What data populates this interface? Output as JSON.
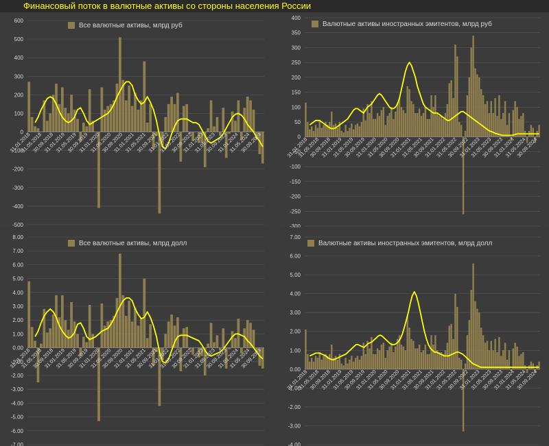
{
  "header": {
    "title": "Финансовый поток в валютные активы со стороны населения России"
  },
  "colors": {
    "bar": "#8f7f4f",
    "line": "#ffff00",
    "grid": "#595959",
    "text": "#d8d8d8",
    "zero": "#8a8a8a"
  },
  "chart_data": [
    {
      "type": "bar",
      "title": "Все валютные активы, млрд руб",
      "ylim": [
        -500,
        600
      ],
      "yticks": [
        -500,
        -400,
        -300,
        -200,
        -100,
        0,
        100,
        200,
        300,
        400,
        500,
        600
      ],
      "tick_decimals": 0,
      "xticks": [
        "31.01.2018",
        "31.05.2018",
        "30.09.2018",
        "31.01.2019",
        "31.05.2019",
        "30.09.2019",
        "31.01.2020",
        "31.05.2020",
        "30.09.2020",
        "31.01.2021",
        "31.05.2021",
        "30.09.2021",
        "31.01.2022",
        "31.05.2022",
        "30.09.2022",
        "31.01.2023",
        "31.05.2023",
        "30.09.2023",
        "31.01.2024",
        "31.05.2024",
        "30.09.2024"
      ],
      "series": [
        {
          "kind": "bar",
          "values": [
            270,
            80,
            30,
            20,
            0,
            170,
            60,
            100,
            200,
            260,
            150,
            240,
            130,
            100,
            200,
            120,
            70,
            -50,
            50,
            30,
            230,
            60,
            0,
            -410,
            240,
            120,
            140,
            150,
            170,
            260,
            510,
            280,
            170,
            250,
            140,
            210,
            120,
            170,
            380,
            50,
            150,
            -90,
            -20,
            -440,
            -80,
            80,
            150,
            190,
            150,
            210,
            -160,
            140,
            150,
            -10,
            -50,
            0,
            -60,
            -60,
            -190,
            20,
            170,
            30,
            80,
            -20,
            130,
            -140,
            -10,
            110,
            60,
            170,
            -40,
            130,
            190,
            170,
            120,
            -40,
            -120,
            -170
          ]
        },
        {
          "kind": "line",
          "values": [
            30,
            20,
            50,
            80,
            120,
            150,
            180,
            190,
            180,
            150,
            110,
            80,
            60,
            50,
            60,
            80,
            120,
            130,
            100,
            60,
            40,
            50,
            60,
            70,
            80,
            90,
            100,
            120,
            150,
            190,
            220,
            250,
            270,
            270,
            250,
            200,
            170,
            150,
            160,
            190,
            160,
            120,
            60,
            -20,
            -80,
            -90,
            -60,
            -10,
            30,
            60,
            70,
            70,
            70,
            60,
            50,
            50,
            40,
            10,
            -20,
            -50,
            -60,
            -50,
            -40,
            -30,
            -10,
            20,
            50,
            80,
            95,
            100,
            90,
            70,
            40,
            20,
            0,
            -30,
            -50,
            -80
          ]
        }
      ]
    },
    {
      "type": "bar",
      "title": "Валютные активы иностранных эмитентов, млрд руб",
      "ylim": [
        -300,
        400
      ],
      "yticks": [
        -300,
        -250,
        -200,
        -150,
        -100,
        -50,
        0,
        50,
        100,
        150,
        200,
        250,
        300,
        350,
        400
      ],
      "tick_decimals": 0,
      "xticks": [
        "31.01.2018",
        "31.05.2018",
        "30.09.2018",
        "31.01.2019",
        "31.05.2019",
        "30.09.2019",
        "31.01.2020",
        "31.05.2020",
        "30.09.2020",
        "31.01.2021",
        "31.05.2021",
        "30.09.2021",
        "31.01.2022",
        "31.05.2022",
        "30.09.2022",
        "31.01.2023",
        "31.05.2023",
        "30.09.2023",
        "31.01.2024",
        "31.05.2024",
        "30.09.2024"
      ],
      "series": [
        {
          "kind": "bar",
          "values": [
            115,
            50,
            25,
            35,
            20,
            40,
            30,
            55,
            30,
            40,
            50,
            40,
            50,
            85,
            40,
            45,
            30,
            50,
            20,
            15,
            40,
            20,
            30,
            45,
            25,
            40,
            45,
            35,
            50,
            95,
            55,
            110,
            80,
            120,
            60,
            60,
            80,
            70,
            90,
            100,
            40,
            70,
            80,
            100,
            60,
            85,
            115,
            130,
            100,
            90,
            80,
            170,
            160,
            120,
            110,
            80,
            80,
            95,
            70,
            80,
            100,
            60,
            60,
            140,
            100,
            140,
            80,
            70,
            70,
            60,
            80,
            110,
            180,
            190,
            130,
            310,
            270,
            50,
            40,
            -260,
            20,
            140,
            200,
            300,
            340,
            230,
            210,
            200,
            160,
            140,
            110,
            120,
            80,
            120,
            80,
            130,
            70,
            140,
            60,
            80,
            120,
            40,
            80,
            -10,
            90,
            120,
            100,
            60,
            70,
            80,
            20,
            -20,
            20,
            40,
            30,
            -20,
            20,
            40
          ]
        },
        {
          "kind": "line",
          "values": [
            30,
            35,
            40,
            45,
            50,
            55,
            55,
            55,
            50,
            45,
            40,
            35,
            30,
            28,
            28,
            30,
            35,
            40,
            45,
            50,
            55,
            60,
            70,
            80,
            90,
            95,
            95,
            90,
            85,
            80,
            90,
            100,
            105,
            110,
            120,
            130,
            140,
            145,
            140,
            130,
            120,
            110,
            100,
            95,
            95,
            100,
            110,
            130,
            160,
            190,
            220,
            240,
            250,
            240,
            220,
            200,
            170,
            150,
            130,
            110,
            100,
            95,
            90,
            85,
            80,
            80,
            80,
            75,
            70,
            65,
            60,
            55,
            55,
            60,
            65,
            70,
            75,
            80,
            85,
            85,
            80,
            75,
            70,
            65,
            60,
            55,
            50,
            45,
            40,
            35,
            30,
            25,
            20,
            18,
            15,
            12,
            10,
            8,
            6,
            5,
            5,
            5,
            5,
            5,
            6,
            8,
            10,
            10,
            10,
            10,
            10,
            10,
            10,
            10,
            10,
            10,
            10,
            10
          ]
        }
      ]
    },
    {
      "type": "bar",
      "title": "Все валютные активы, млрд долл",
      "ylim": [
        -7,
        8
      ],
      "yticks": [
        -7,
        -6,
        -5,
        -4,
        -3,
        -2,
        -1,
        0,
        1,
        2,
        3,
        4,
        5,
        6,
        7,
        8
      ],
      "tick_decimals": 2,
      "xticks": [
        "31.01.2018",
        "31.05.2018",
        "30.09.2018",
        "31.01.2019",
        "31.05.2019",
        "30.09.2019",
        "31.01.2020",
        "31.05.2020",
        "30.09.2020",
        "31.01.2021",
        "31.05.2021",
        "30.09.2021",
        "31.01.2022",
        "31.05.2022",
        "30.09.2022",
        "31.01.2023",
        "31.05.2023",
        "30.09.2023",
        "31.01.2024",
        "31.05.2024",
        "30.09.2024"
      ],
      "series": [
        {
          "kind": "bar",
          "values": [
            4.8,
            1.5,
            0.5,
            -2.5,
            0.3,
            2.8,
            1.1,
            1.4,
            2.4,
            3.8,
            2.2,
            3.8,
            2.0,
            1.3,
            3.3,
            1.9,
            1.0,
            -0.6,
            0.8,
            0.4,
            3.1,
            1.0,
            0.0,
            -5.3,
            3.2,
            1.6,
            1.9,
            2.0,
            2.3,
            3.6,
            6.8,
            3.8,
            2.3,
            3.4,
            1.9,
            2.9,
            1.6,
            2.1,
            5.0,
            0.7,
            1.7,
            -1.3,
            -0.3,
            -4.2,
            -0.9,
            1.0,
            1.9,
            2.4,
            1.6,
            2.2,
            -1.7,
            1.4,
            1.5,
            -0.1,
            -0.5,
            0.0,
            -0.7,
            -0.6,
            -2.0,
            0.3,
            1.8,
            0.4,
            0.9,
            -0.2,
            1.4,
            -1.5,
            -0.1,
            1.2,
            0.7,
            2.1,
            -0.4,
            1.4,
            2.0,
            1.8,
            1.3,
            -0.4,
            -1.3,
            -1.5
          ]
        },
        {
          "kind": "line",
          "values": [
            0.6,
            0.4,
            0.8,
            1.2,
            1.8,
            2.3,
            2.6,
            2.8,
            2.6,
            2.2,
            1.6,
            1.2,
            0.9,
            0.7,
            0.8,
            1.1,
            1.7,
            1.8,
            1.4,
            0.8,
            0.6,
            0.7,
            0.8,
            1.0,
            1.2,
            1.3,
            1.4,
            1.7,
            2.1,
            2.6,
            3.0,
            3.4,
            3.6,
            3.6,
            3.4,
            2.8,
            2.4,
            2.1,
            2.2,
            2.6,
            2.2,
            1.6,
            0.8,
            -0.3,
            -1.0,
            -1.1,
            -0.8,
            -0.2,
            0.4,
            0.8,
            0.9,
            0.9,
            0.9,
            0.8,
            0.7,
            0.6,
            0.5,
            0.2,
            -0.2,
            -0.5,
            -0.6,
            -0.5,
            -0.4,
            -0.3,
            -0.1,
            0.2,
            0.5,
            0.8,
            1.0,
            1.0,
            0.9,
            0.8,
            0.5,
            0.3,
            0.0,
            -0.3,
            -0.6,
            -0.8
          ]
        }
      ]
    },
    {
      "type": "bar",
      "title": "Валютные активы иностранных эмитентов, млрд долл",
      "ylim": [
        -4,
        7
      ],
      "yticks": [
        -4,
        -3,
        -2,
        -1,
        0,
        1,
        2,
        3,
        4,
        5,
        6,
        7
      ],
      "tick_decimals": 2,
      "xticks": [
        "31.01.2018",
        "31.05.2018",
        "30.09.2018",
        "31.01.2019",
        "31.05.2019",
        "30.09.2019",
        "31.01.2020",
        "31.05.2020",
        "30.09.2020",
        "31.01.2021",
        "31.05.2021",
        "30.09.2021",
        "31.01.2022",
        "31.05.2022",
        "30.09.2022",
        "31.01.2023",
        "31.05.2023",
        "30.09.2023",
        "31.01.2024",
        "31.05.2024",
        "30.09.2024"
      ],
      "series": [
        {
          "kind": "bar",
          "values": [
            2.1,
            0.8,
            0.4,
            0.6,
            0.4,
            0.7,
            0.6,
            0.9,
            0.5,
            0.7,
            0.8,
            0.7,
            0.8,
            1.3,
            0.6,
            0.7,
            0.5,
            0.8,
            0.3,
            0.2,
            0.6,
            0.3,
            0.5,
            0.7,
            0.4,
            0.6,
            0.7,
            0.5,
            0.7,
            1.4,
            0.8,
            1.5,
            1.1,
            1.7,
            0.8,
            0.8,
            1.1,
            1.0,
            1.3,
            1.4,
            0.6,
            1.0,
            1.2,
            1.4,
            0.9,
            1.2,
            1.6,
            1.8,
            1.3,
            1.2,
            1.0,
            2.8,
            2.2,
            1.6,
            1.5,
            1.1,
            1.1,
            1.3,
            0.9,
            1.0,
            1.3,
            0.8,
            0.8,
            1.8,
            1.3,
            1.8,
            1.0,
            0.9,
            0.9,
            0.8,
            1.0,
            1.4,
            2.3,
            2.4,
            1.6,
            4.0,
            3.3,
            0.6,
            0.5,
            -3.3,
            0.3,
            1.8,
            2.6,
            4.2,
            5.6,
            3.6,
            3.2,
            3.0,
            2.2,
            1.8,
            1.4,
            1.5,
            1.0,
            1.5,
            1.0,
            1.6,
            0.9,
            1.7,
            0.7,
            1.0,
            1.4,
            0.5,
            1.0,
            -0.1,
            1.1,
            1.4,
            1.2,
            0.7,
            0.8,
            0.9,
            0.2,
            -0.2,
            0.2,
            0.4,
            0.3,
            -0.2,
            0.2,
            0.4
          ]
        },
        {
          "kind": "line",
          "values": [
            0.7,
            0.7,
            0.7,
            0.75,
            0.8,
            0.85,
            0.85,
            0.85,
            0.8,
            0.75,
            0.7,
            0.6,
            0.55,
            0.5,
            0.5,
            0.55,
            0.6,
            0.65,
            0.7,
            0.75,
            0.8,
            0.9,
            1.0,
            1.1,
            1.2,
            1.3,
            1.3,
            1.25,
            1.2,
            1.15,
            1.25,
            1.35,
            1.4,
            1.45,
            1.55,
            1.65,
            1.75,
            1.8,
            1.75,
            1.65,
            1.55,
            1.45,
            1.35,
            1.3,
            1.3,
            1.35,
            1.45,
            1.6,
            1.85,
            2.2,
            2.6,
            3.0,
            3.5,
            3.9,
            4.1,
            3.9,
            3.5,
            3.0,
            2.5,
            2.0,
            1.6,
            1.3,
            1.1,
            1.0,
            0.9,
            0.9,
            0.85,
            0.8,
            0.75,
            0.7,
            0.7,
            0.7,
            0.75,
            0.8,
            0.85,
            0.9,
            0.9,
            0.85,
            0.8,
            0.7,
            0.6,
            0.5,
            0.4,
            0.3,
            0.25,
            0.2,
            0.15,
            0.1,
            0.1,
            0.1,
            0.1,
            0.1,
            0.1,
            0.1,
            0.1,
            0.1,
            0.1,
            0.1,
            0.1,
            0.1,
            0.1,
            0.1,
            0.1,
            0.1,
            0.1,
            0.1,
            0.1,
            0.1,
            0.1,
            0.1,
            0.1,
            0.1,
            0.1,
            0.1,
            0.1,
            0.1,
            0.1
          ]
        }
      ]
    }
  ]
}
